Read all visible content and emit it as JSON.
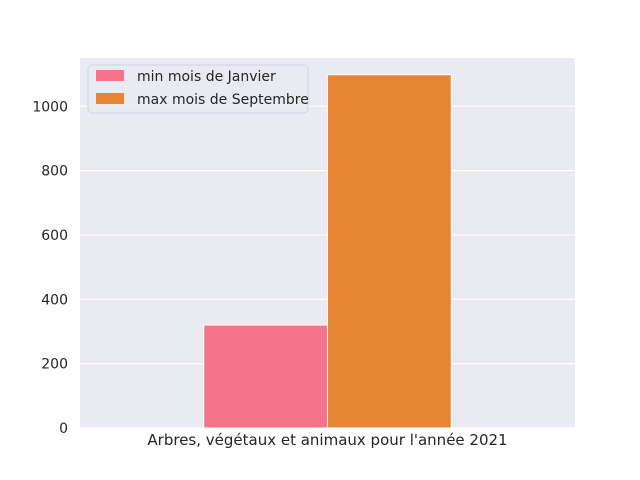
{
  "chart_data": {
    "type": "bar",
    "categories": [
      "Arbres, végétaux et animaux pour l'année 2021"
    ],
    "series": [
      {
        "name": "min mois de Janvier",
        "values": [
          320
        ],
        "color": "#f6738a"
      },
      {
        "name": "max mois de Septembre",
        "values": [
          1098
        ],
        "color": "#e68533"
      }
    ],
    "title": "",
    "xlabel": "",
    "ylabel": "",
    "ylim": [
      0,
      1150
    ],
    "yticks": [
      0,
      200,
      400,
      600,
      800,
      1000
    ],
    "grid": true,
    "legend_position": "top-left",
    "background": "#eaeaf2"
  }
}
